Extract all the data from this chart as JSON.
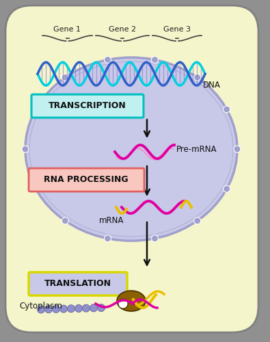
{
  "bg_outer": "#909090",
  "bg_cell": "#f5f5cc",
  "nucleus_fill": "#c8c8e8",
  "nucleus_edge": "#a0a0cc",
  "dna_color1": "#00d0e0",
  "dna_color2": "#3060c8",
  "dna_rung_color": "#7878cc",
  "transcription_fill": "#c0f0f0",
  "transcription_border": "#00c0c0",
  "transcription_text": "TRANSCRIPTION",
  "rna_processing_fill": "#f8c8c0",
  "rna_processing_border": "#e06060",
  "rna_processing_text": "RNA PROCESSING",
  "translation_fill": "#c8c8e8",
  "translation_border": "#d8d800",
  "translation_text": "TRANSLATION",
  "pre_mrna_pink": "#e000a0",
  "pre_mrna_light": "#ff80c0",
  "mrna_pink": "#e000a0",
  "mrna_yellow": "#e8c000",
  "arrow_color": "#101010",
  "text_color": "#101010",
  "gene_label_color": "#202020",
  "cytoplasm_text": "Cytoplasm",
  "dna_label": "DNA",
  "premrna_label": "Pre-mRNA",
  "mrna_label": "mRNA",
  "gene1_label": "Gene 1",
  "gene2_label": "Gene 2",
  "gene3_label": "Gene 3",
  "ribosome_color": "#8B6000",
  "bead_color": "#9090cc",
  "bead_edge": "#6060a0",
  "pore_fill": "#a0a0cc",
  "cell_edge": "#808080"
}
